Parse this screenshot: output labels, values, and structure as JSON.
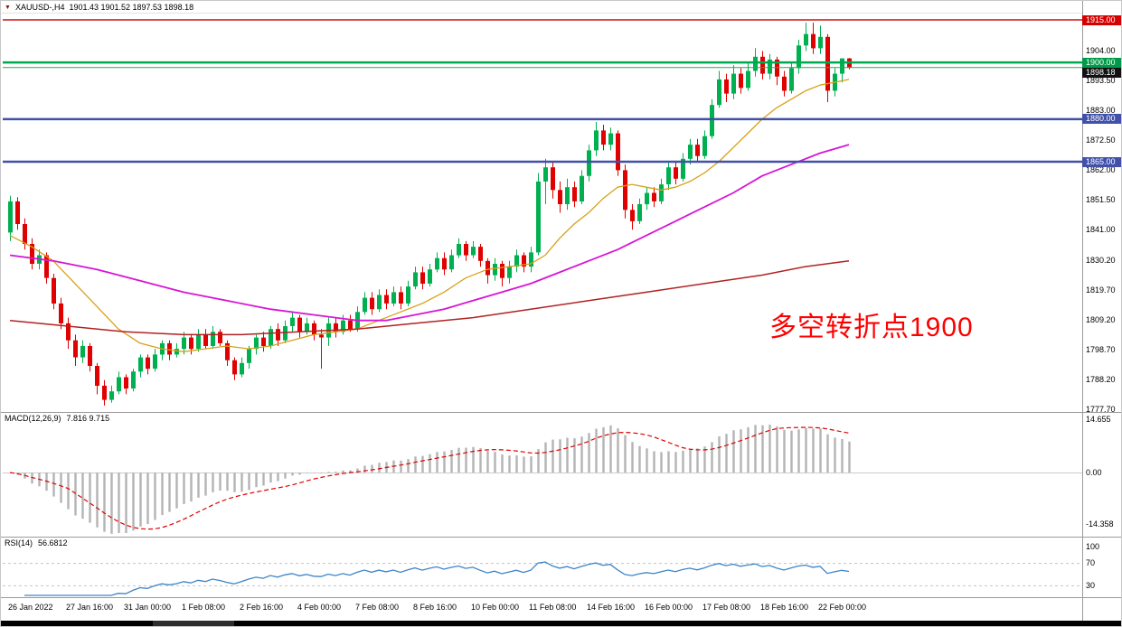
{
  "icons": {
    "symbol_dropdown": "▼"
  },
  "colors": {
    "up": "#00b050",
    "down": "#e00000",
    "resistance_line": "#cc1111",
    "pivot_line": "#00a84f",
    "support_line": "#4150a8",
    "macd_histogram": "#b4b4b4",
    "macd_signal": "#e00000",
    "rsi_line": "#3d85c8",
    "annotation": "#ff0000"
  },
  "time_axis": {
    "labels": [
      "26 Jan 2022",
      "27 Jan 16:00",
      "31 Jan 00:00",
      "1 Feb 08:00",
      "2 Feb 16:00",
      "4 Feb 00:00",
      "7 Feb 08:00",
      "8 Feb 16:00",
      "10 Feb 00:00",
      "11 Feb 08:00",
      "14 Feb 16:00",
      "16 Feb 00:00",
      "17 Feb 08:00",
      "18 Feb 16:00",
      "22 Feb 00:00"
    ]
  },
  "chart_data": [
    {
      "type": "candlestick",
      "title": "XAUUSD-,H4",
      "title_display": "XAUUSD-,H4",
      "ohlc_display": "1901.43 1901.52 1897.53 1898.18",
      "last_ohlc": {
        "open": 1901.43,
        "high": 1901.52,
        "low": 1897.53,
        "close": 1898.18
      },
      "ylim": [
        1777.7,
        1915.0
      ],
      "y_ticks": [
        "1904.00",
        "1893.50",
        "1883.00",
        "1872.50",
        "1862.00",
        "1851.50",
        "1841.00",
        "1830.20",
        "1819.70",
        "1809.20",
        "1798.70",
        "1788.20",
        "1777.70"
      ],
      "hlines": [
        {
          "price": 1915.0,
          "color": "#cc1111",
          "width": 1.5,
          "badge": "1915.00",
          "badge_bg": "#d40000"
        },
        {
          "price": 1900.0,
          "color": "#00a84f",
          "width": 2.5,
          "badge": "1900.00",
          "badge_bg": "#009a48"
        },
        {
          "price": 1898.18,
          "color": "#2aa84a",
          "width": 1,
          "badge": "1898.18",
          "badge_bg": "#111111"
        },
        {
          "price": 1880.0,
          "color": "#4150a8",
          "width": 2.5,
          "badge": "1880.00",
          "badge_bg": "#4150a8"
        },
        {
          "price": 1865.0,
          "color": "#4150a8",
          "width": 2.5,
          "badge": "1865.00",
          "badge_bg": "#4150a8"
        }
      ],
      "annotation": {
        "text": "多空转折点1900",
        "color": "#ff0000",
        "anchor_index": 105,
        "anchor_price": 1814.5
      },
      "moving_averages": [
        {
          "name": "ma-fast-orange",
          "color": "#d8a018",
          "width": 1.3,
          "points": [
            [
              0,
              1839
            ],
            [
              3,
              1835
            ],
            [
              6,
              1830
            ],
            [
              9,
              1822
            ],
            [
              12,
              1814
            ],
            [
              15,
              1806
            ],
            [
              18,
              1801
            ],
            [
              21,
              1799
            ],
            [
              24,
              1798
            ],
            [
              27,
              1799
            ],
            [
              30,
              1800
            ],
            [
              33,
              1799
            ],
            [
              36,
              1800
            ],
            [
              39,
              1802
            ],
            [
              42,
              1804
            ],
            [
              45,
              1805
            ],
            [
              48,
              1806
            ],
            [
              51,
              1809
            ],
            [
              54,
              1812
            ],
            [
              57,
              1815
            ],
            [
              60,
              1819
            ],
            [
              63,
              1824
            ],
            [
              66,
              1827
            ],
            [
              69,
              1828
            ],
            [
              72,
              1829
            ],
            [
              74,
              1832
            ],
            [
              76,
              1838
            ],
            [
              78,
              1843
            ],
            [
              80,
              1847
            ],
            [
              82,
              1852
            ],
            [
              84,
              1856
            ],
            [
              86,
              1857
            ],
            [
              88,
              1856
            ],
            [
              90,
              1855
            ],
            [
              92,
              1856
            ],
            [
              94,
              1858
            ],
            [
              96,
              1861
            ],
            [
              98,
              1865
            ],
            [
              100,
              1870
            ],
            [
              102,
              1875
            ],
            [
              104,
              1880
            ],
            [
              106,
              1884
            ],
            [
              108,
              1887
            ],
            [
              110,
              1890
            ],
            [
              112,
              1892
            ],
            [
              114,
              1893
            ],
            [
              116,
              1894
            ]
          ]
        },
        {
          "name": "ma-mid-magenta",
          "color": "#d616d6",
          "width": 1.8,
          "points": [
            [
              0,
              1832
            ],
            [
              6,
              1830
            ],
            [
              12,
              1827
            ],
            [
              18,
              1823
            ],
            [
              24,
              1819
            ],
            [
              30,
              1816
            ],
            [
              36,
              1813
            ],
            [
              42,
              1811
            ],
            [
              48,
              1809
            ],
            [
              52,
              1809
            ],
            [
              56,
              1811
            ],
            [
              60,
              1813
            ],
            [
              64,
              1816
            ],
            [
              68,
              1819
            ],
            [
              72,
              1822
            ],
            [
              76,
              1826
            ],
            [
              80,
              1830
            ],
            [
              84,
              1834
            ],
            [
              88,
              1839
            ],
            [
              92,
              1844
            ],
            [
              96,
              1849
            ],
            [
              100,
              1854
            ],
            [
              104,
              1860
            ],
            [
              108,
              1864
            ],
            [
              112,
              1868
            ],
            [
              116,
              1871
            ]
          ]
        },
        {
          "name": "ma-slow-darkred",
          "color": "#b22222",
          "width": 1.5,
          "points": [
            [
              0,
              1809
            ],
            [
              8,
              1807
            ],
            [
              16,
              1805
            ],
            [
              24,
              1804
            ],
            [
              32,
              1804
            ],
            [
              40,
              1805
            ],
            [
              48,
              1806
            ],
            [
              56,
              1808
            ],
            [
              64,
              1810
            ],
            [
              72,
              1813
            ],
            [
              80,
              1816
            ],
            [
              88,
              1819
            ],
            [
              96,
              1822
            ],
            [
              104,
              1825
            ],
            [
              110,
              1828
            ],
            [
              116,
              1830
            ]
          ]
        }
      ],
      "candles": [
        [
          1840,
          1853,
          1837,
          1851
        ],
        [
          1851,
          1852.5,
          1841,
          1843
        ],
        [
          1843,
          1845,
          1834,
          1836
        ],
        [
          1836,
          1838,
          1827,
          1829
        ],
        [
          1829,
          1834,
          1827,
          1832
        ],
        [
          1832,
          1833,
          1822,
          1824
        ],
        [
          1824,
          1825.5,
          1813,
          1815
        ],
        [
          1815,
          1817,
          1806,
          1808
        ],
        [
          1808,
          1810,
          1799,
          1802
        ],
        [
          1802,
          1804,
          1793,
          1796
        ],
        [
          1796,
          1802,
          1794,
          1800
        ],
        [
          1800,
          1801,
          1791,
          1793
        ],
        [
          1793,
          1794,
          1783,
          1786
        ],
        [
          1786,
          1788,
          1779,
          1781
        ],
        [
          1781,
          1786,
          1780,
          1784
        ],
        [
          1784,
          1791,
          1783,
          1789
        ],
        [
          1789,
          1790,
          1783,
          1785
        ],
        [
          1785,
          1792,
          1784,
          1791
        ],
        [
          1791,
          1797,
          1789,
          1796
        ],
        [
          1796,
          1797,
          1790,
          1792
        ],
        [
          1792,
          1799,
          1791,
          1797
        ],
        [
          1797,
          1802,
          1795,
          1801
        ],
        [
          1801,
          1802,
          1795,
          1797
        ],
        [
          1797,
          1801,
          1796,
          1799
        ],
        [
          1799,
          1805,
          1797,
          1803
        ],
        [
          1803,
          1804,
          1797,
          1799
        ],
        [
          1799,
          1806,
          1798,
          1804
        ],
        [
          1804,
          1806,
          1799,
          1800
        ],
        [
          1800,
          1807,
          1799,
          1805
        ],
        [
          1805,
          1806,
          1800,
          1801
        ],
        [
          1801,
          1802,
          1793,
          1795
        ],
        [
          1795,
          1796,
          1788,
          1790
        ],
        [
          1790,
          1796,
          1789,
          1794
        ],
        [
          1794,
          1800,
          1792,
          1799
        ],
        [
          1799,
          1804,
          1797,
          1803
        ],
        [
          1803,
          1805,
          1798,
          1800
        ],
        [
          1800,
          1807,
          1799,
          1806
        ],
        [
          1806,
          1808,
          1800,
          1802
        ],
        [
          1802,
          1809,
          1801,
          1807
        ],
        [
          1807,
          1812,
          1805,
          1810
        ],
        [
          1810,
          1811,
          1803,
          1805
        ],
        [
          1805,
          1810,
          1804,
          1808
        ],
        [
          1808,
          1809,
          1802,
          1804
        ],
        [
          1804,
          1806,
          1792,
          1803
        ],
        [
          1803,
          1810,
          1800,
          1808
        ],
        [
          1808,
          1810,
          1803,
          1805
        ],
        [
          1805,
          1811,
          1804,
          1809
        ],
        [
          1809,
          1811,
          1805,
          1806
        ],
        [
          1806,
          1814,
          1805,
          1812
        ],
        [
          1812,
          1819,
          1811,
          1817
        ],
        [
          1817,
          1819,
          1811,
          1813
        ],
        [
          1813,
          1820,
          1812,
          1818
        ],
        [
          1818,
          1820,
          1813,
          1815
        ],
        [
          1815,
          1821,
          1814,
          1819
        ],
        [
          1819,
          1821,
          1813,
          1815
        ],
        [
          1815,
          1823,
          1814,
          1821
        ],
        [
          1821,
          1828,
          1820,
          1826
        ],
        [
          1826,
          1828,
          1820,
          1822
        ],
        [
          1822,
          1829,
          1821,
          1827
        ],
        [
          1827,
          1833,
          1826,
          1831
        ],
        [
          1831,
          1833,
          1825,
          1827
        ],
        [
          1827,
          1834,
          1826,
          1832
        ],
        [
          1832,
          1838,
          1831,
          1836
        ],
        [
          1836,
          1837,
          1830,
          1832
        ],
        [
          1832,
          1837,
          1831,
          1835
        ],
        [
          1835,
          1836,
          1828,
          1830
        ],
        [
          1830,
          1831,
          1822,
          1825
        ],
        [
          1825,
          1831,
          1823,
          1829
        ],
        [
          1829,
          1830,
          1821,
          1824
        ],
        [
          1824,
          1830,
          1822,
          1828
        ],
        [
          1828,
          1834,
          1826,
          1832
        ],
        [
          1832,
          1833,
          1826,
          1828
        ],
        [
          1828,
          1835,
          1826,
          1833
        ],
        [
          1833,
          1861,
          1832,
          1858
        ],
        [
          1858,
          1866,
          1850,
          1863
        ],
        [
          1863,
          1865,
          1852,
          1855
        ],
        [
          1855,
          1858,
          1847,
          1850
        ],
        [
          1850,
          1859,
          1848,
          1856
        ],
        [
          1856,
          1858,
          1849,
          1851
        ],
        [
          1851,
          1862,
          1850,
          1860
        ],
        [
          1860,
          1871,
          1858,
          1869
        ],
        [
          1869,
          1879,
          1867,
          1876
        ],
        [
          1876,
          1878,
          1869,
          1871
        ],
        [
          1871,
          1877,
          1869,
          1875
        ],
        [
          1875,
          1876,
          1860,
          1862
        ],
        [
          1862,
          1864,
          1845,
          1848
        ],
        [
          1848,
          1850,
          1841,
          1844
        ],
        [
          1844,
          1852,
          1843,
          1850
        ],
        [
          1850,
          1856,
          1848,
          1854
        ],
        [
          1854,
          1856,
          1849,
          1851
        ],
        [
          1851,
          1859,
          1850,
          1857
        ],
        [
          1857,
          1865,
          1855,
          1863
        ],
        [
          1863,
          1865,
          1857,
          1859
        ],
        [
          1859,
          1868,
          1858,
          1866
        ],
        [
          1866,
          1873,
          1864,
          1871
        ],
        [
          1871,
          1873,
          1865,
          1867
        ],
        [
          1867,
          1876,
          1866,
          1874
        ],
        [
          1874,
          1887,
          1873,
          1885
        ],
        [
          1885,
          1897,
          1884,
          1894
        ],
        [
          1894,
          1896,
          1886,
          1889
        ],
        [
          1889,
          1899,
          1887,
          1896
        ],
        [
          1896,
          1898,
          1889,
          1891
        ],
        [
          1891,
          1900,
          1890,
          1897
        ],
        [
          1897,
          1905,
          1895,
          1902
        ],
        [
          1902,
          1904,
          1894,
          1896
        ],
        [
          1896,
          1903,
          1894,
          1901
        ],
        [
          1901,
          1902,
          1892,
          1895
        ],
        [
          1895,
          1897,
          1888,
          1890
        ],
        [
          1890,
          1900,
          1889,
          1898
        ],
        [
          1898,
          1908,
          1896,
          1906
        ],
        [
          1906,
          1914,
          1904,
          1910
        ],
        [
          1910,
          1914,
          1903,
          1905
        ],
        [
          1905,
          1913,
          1903,
          1909
        ],
        [
          1909,
          1910,
          1886,
          1890
        ],
        [
          1890,
          1898,
          1888,
          1896
        ],
        [
          1896,
          1901,
          1893,
          1901.43
        ],
        [
          1901.43,
          1901.52,
          1897.53,
          1898.18
        ]
      ]
    },
    {
      "type": "macd",
      "label_display": "MACD(12,26,9)",
      "values_display": "7.816 9.715",
      "current_macd": 7.816,
      "current_signal": 9.715,
      "params": {
        "fast": 12,
        "slow": 26,
        "signal": 9
      },
      "y_ticks": [
        "14.655",
        "0.00",
        "-14.358"
      ],
      "ylim": [
        -16.5,
        16.5
      ],
      "hist_color": "#b4b4b4",
      "signal_color": "#e00000"
    },
    {
      "type": "rsi",
      "label_display": "RSI(14)",
      "value_display": "56.6812",
      "current": 56.6812,
      "period": 14,
      "levels": [
        70,
        30
      ],
      "y_ticks": [
        "100",
        "70",
        "30"
      ],
      "ylim": [
        0,
        100
      ],
      "line_color": "#3d85c8"
    }
  ]
}
